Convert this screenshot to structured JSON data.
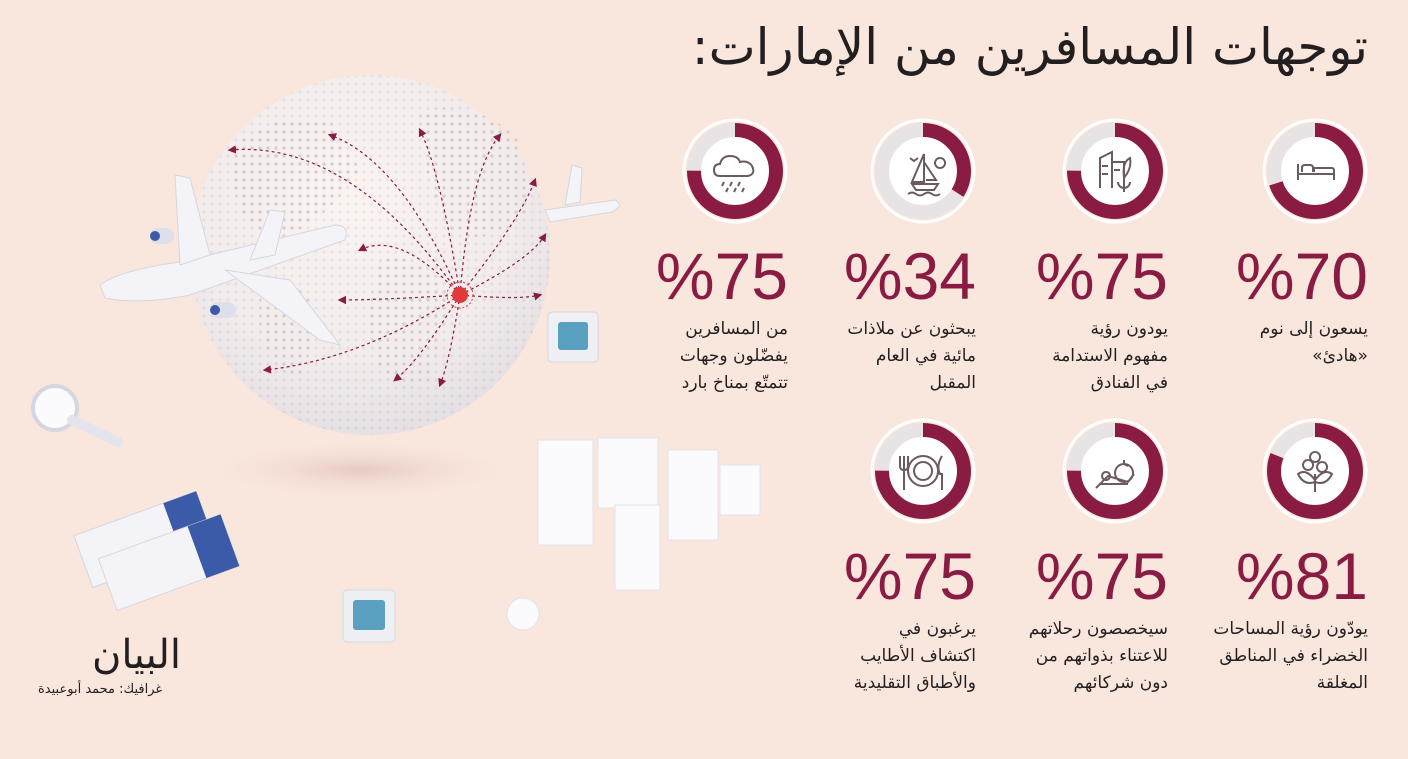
{
  "title": "توجهات المسافرين من الإمارات:",
  "colors": {
    "accent": "#8a1c44",
    "ring_bg": "#e8e3e4",
    "background": "#f9e6dc"
  },
  "stats": [
    {
      "percent": "%70",
      "value": 70,
      "description": "يسعون إلى نوم\n«هادئ»",
      "icon": "bed-icon"
    },
    {
      "percent": "%75",
      "value": 75,
      "description": "يودون رؤية\nمفهوم الاستدامة\nفي الفنادق",
      "icon": "sustainable-buildings-icon"
    },
    {
      "percent": "%34",
      "value": 34,
      "description": "يبحثون عن ملاذات\nمائية في العام\nالمقبل",
      "icon": "sailboat-icon"
    },
    {
      "percent": "%75",
      "value": 75,
      "description": "من المسافرين\nيفضّلون وجهات\nتتمتّع بمناخ بارد",
      "icon": "cloud-rain-icon"
    },
    {
      "percent": "%81",
      "value": 81,
      "description": "يودّون رؤية المساحات\nالخضراء في المناطق\nالمغلقة",
      "icon": "plant-icon"
    },
    {
      "percent": "%75",
      "value": 75,
      "description": "سيخصصون رحلاتهم\nللاعتناء بذواتهم من\nدون شركائهم",
      "icon": "lounger-clock-icon"
    },
    {
      "percent": "%75",
      "value": 75,
      "description": "يرغبون في\nاكتشاف الأطايب\nوالأطباق التقليدية",
      "icon": "plate-fork-knife-icon"
    }
  ],
  "logo": "البيان",
  "credit": "غرافيك: محمد أبوعبيدة"
}
